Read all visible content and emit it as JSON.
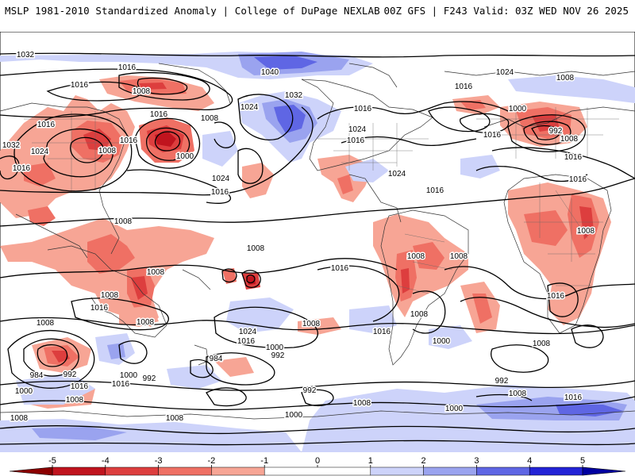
{
  "header": {
    "title": "MSLP 1981-2010 Standardized Anomaly | College of DuPage NEXLAB",
    "model": "00Z GFS | F243 Valid: 03Z WED NOV 26 2025"
  },
  "map": {
    "contour_labels": [
      "1032",
      "1016",
      "1016",
      "1008",
      "1016",
      "1008",
      "1032",
      "1024",
      "1016",
      "1040",
      "1024",
      "1016",
      "1000",
      "1016",
      "1008",
      "1032",
      "1016",
      "1008",
      "1000",
      "1016",
      "992",
      "1008",
      "1016",
      "1016",
      "1024",
      "1016",
      "1024",
      "1024",
      "1016",
      "1016",
      "1024",
      "1016",
      "1008",
      "1008",
      "1008",
      "1016",
      "1008",
      "1008",
      "1016",
      "1016",
      "1008",
      "1008",
      "1008",
      "1024",
      "1016",
      "1008",
      "1008",
      "1000",
      "992",
      "1016",
      "1000",
      "1008",
      "1008",
      "984",
      "992",
      "1000",
      "1016",
      "992",
      "984",
      "992",
      "1000",
      "1008",
      "1016",
      "1008",
      "992",
      "1008",
      "1000",
      "1000",
      "1008",
      "1008",
      "1016"
    ]
  },
  "colorbar": {
    "ticks": [
      "-5",
      "-4",
      "-3",
      "-2",
      "-1",
      "0",
      "1",
      "2",
      "3",
      "4",
      "5"
    ],
    "bins": [
      {
        "from": -5,
        "to": -4,
        "color": "#c0141e"
      },
      {
        "from": -4,
        "to": -3,
        "color": "#dd3e3e"
      },
      {
        "from": -3,
        "to": -2,
        "color": "#ef7064"
      },
      {
        "from": -2,
        "to": -1,
        "color": "#f7a595"
      },
      {
        "from": -1,
        "to": 1,
        "color": "#ffffff"
      },
      {
        "from": 1,
        "to": 2,
        "color": "#cdd3fa"
      },
      {
        "from": 2,
        "to": 3,
        "color": "#9aa3ef"
      },
      {
        "from": 3,
        "to": 4,
        "color": "#5f66e4"
      },
      {
        "from": 4,
        "to": 5,
        "color": "#2323d6"
      }
    ]
  },
  "colors": {
    "neg_strong": "#c0141e",
    "neg_mid": "#dd3e3e",
    "neg_light": "#ef7064",
    "neg_faint": "#f7a595",
    "pos_faint": "#cdd3fa",
    "pos_light": "#9aa3ef",
    "pos_mid": "#5f66e4",
    "pos_strong": "#2323d6"
  }
}
